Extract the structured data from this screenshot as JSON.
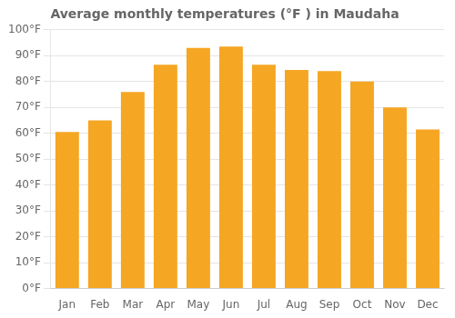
{
  "chart_data": {
    "type": "bar",
    "title": "Average monthly temperatures (°F ) in Maudaha",
    "categories": [
      "Jan",
      "Feb",
      "Mar",
      "Apr",
      "May",
      "Jun",
      "Jul",
      "Aug",
      "Sep",
      "Oct",
      "Nov",
      "Dec"
    ],
    "values": [
      60.5,
      65.0,
      76.0,
      86.5,
      93.0,
      93.5,
      86.5,
      84.5,
      84.0,
      80.0,
      70.0,
      61.5
    ],
    "color": "#F5A623",
    "ylim": [
      0,
      100
    ],
    "yticks": [
      {
        "value": 0,
        "label": "0°F"
      },
      {
        "value": 10,
        "label": "10°F"
      },
      {
        "value": 20,
        "label": "20°F"
      },
      {
        "value": 30,
        "label": "30°F"
      },
      {
        "value": 40,
        "label": "40°F"
      },
      {
        "value": 50,
        "label": "50°F"
      },
      {
        "value": 60,
        "label": "60°F"
      },
      {
        "value": 70,
        "label": "70°F"
      },
      {
        "value": 80,
        "label": "80°F"
      },
      {
        "value": 90,
        "label": "90°F"
      },
      {
        "value": 100,
        "label": "100°F"
      }
    ],
    "grid": true
  }
}
